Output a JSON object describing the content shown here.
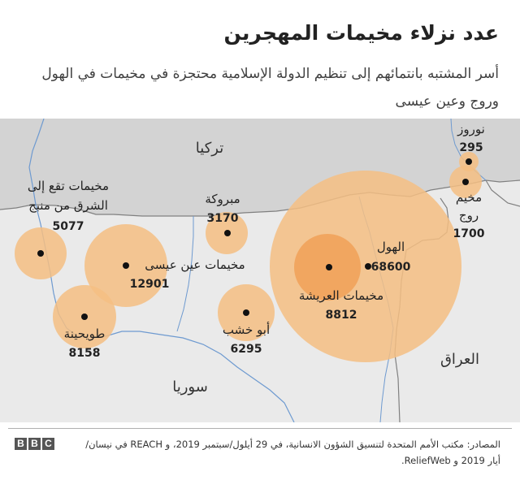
{
  "title": "عدد نزلاء مخيمات المهجرين",
  "subtitle": "أسر المشتبه بانتمائهم إلى تنظيم الدولة الإسلامية محتجزة في مخيمات في الهول وروج وعين عيسى",
  "countries": {
    "turkey": "تركيا",
    "syria": "سوريا",
    "iraq": "العراق"
  },
  "camps": [
    {
      "name_line1": "مخيمات تقع إلى",
      "name_line2": "الشرق من منبج",
      "value": "5077"
    },
    {
      "name": "مبروكة",
      "value": "3170"
    },
    {
      "name": "مخيمات عين عيسى",
      "value": "12901"
    },
    {
      "name": "طويحينة",
      "value": "8158"
    },
    {
      "name": "أبو خشب",
      "value": "6295"
    },
    {
      "name": "مخيمات العريشة",
      "value": "8812"
    },
    {
      "name": "الهول",
      "value": "68600"
    },
    {
      "name": "نوروز",
      "value": "295"
    },
    {
      "name_line1": "مخيم",
      "name_line2": "روج",
      "value": "1700"
    }
  ],
  "colors": {
    "land": "#eaeaea",
    "turkey": "#d3d3d3",
    "bubble": "#f5be82",
    "bubble_dense": "#f0a057",
    "river": "#6e9ad0",
    "border": "#808080"
  },
  "footer": {
    "logo": [
      "B",
      "B",
      "C"
    ],
    "source": "المصادر: مكتب الأمم المتحدة لتنسيق الشؤون الانسانية، في 29 أيلول/سبتمبر 2019، و REACH في نيسان/أيار 2019 و ReliefWeb."
  }
}
